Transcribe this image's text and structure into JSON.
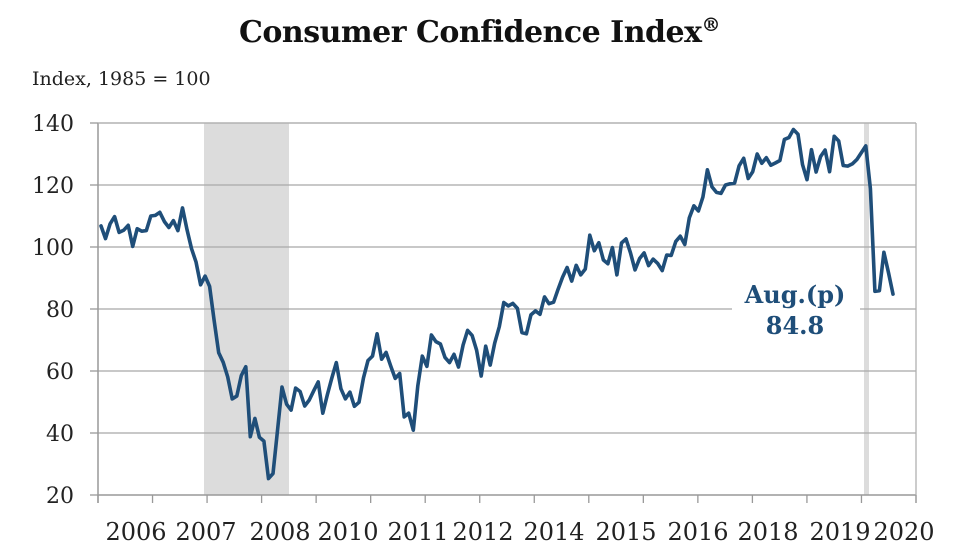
{
  "chart_data": {
    "type": "line",
    "title": "Consumer Confidence Index",
    "title_mark": "®",
    "ylabel": "Index, 1985 = 100",
    "xlabel": "",
    "ylim": [
      20,
      140
    ],
    "yticks": [
      20,
      40,
      60,
      80,
      100,
      120,
      140
    ],
    "xtick_labels": [
      "2006",
      "2007",
      "2008",
      "2010",
      "2011",
      "2012",
      "2014",
      "2015",
      "2016",
      "2018",
      "2019",
      "2020"
    ],
    "grid": true,
    "line_color": "#1f4e79",
    "recession_color": "#dcdcdc",
    "recession_periods": [
      {
        "start": "2007-12",
        "end": "2009-06"
      },
      {
        "start": "2020-02",
        "end": "2020-04"
      }
    ],
    "annotation": {
      "line1": "Aug.(p)",
      "line2": "84.8"
    },
    "series": [
      {
        "name": "Consumer Confidence Index",
        "start": "2006-01",
        "frequency": "monthly",
        "values": [
          106.8,
          102.7,
          107.5,
          109.8,
          104.7,
          105.4,
          107.0,
          100.2,
          105.9,
          105.1,
          105.3,
          110.0,
          110.2,
          111.2,
          108.2,
          106.3,
          108.5,
          105.3,
          112.6,
          105.6,
          99.5,
          95.2,
          87.8,
          90.6,
          87.3,
          76.4,
          65.9,
          62.8,
          58.1,
          51.0,
          51.9,
          58.5,
          61.4,
          38.8,
          44.7,
          38.6,
          37.4,
          25.3,
          26.9,
          40.8,
          54.8,
          49.3,
          47.4,
          54.5,
          53.4,
          48.7,
          50.6,
          53.6,
          56.5,
          46.4,
          52.3,
          57.7,
          62.7,
          54.3,
          51.0,
          53.2,
          48.6,
          49.9,
          57.8,
          63.4,
          64.8,
          72.0,
          63.8,
          66.0,
          61.7,
          57.6,
          59.2,
          45.2,
          46.4,
          40.9,
          55.2,
          64.8,
          61.5,
          71.6,
          69.5,
          68.7,
          64.4,
          62.7,
          65.4,
          61.3,
          68.4,
          73.1,
          71.5,
          66.7,
          58.4,
          68.0,
          61.9,
          69.0,
          74.3,
          82.1,
          81.0,
          81.8,
          80.2,
          72.4,
          72.0,
          78.1,
          79.4,
          78.3,
          83.9,
          81.7,
          82.2,
          86.4,
          90.3,
          93.4,
          89.0,
          94.1,
          91.0,
          92.9,
          103.8,
          98.8,
          101.4,
          95.8,
          94.6,
          99.8,
          91.0,
          101.3,
          102.6,
          98.1,
          92.6,
          96.3,
          98.1,
          94.0,
          96.1,
          94.7,
          92.4,
          97.4,
          97.3,
          101.8,
          103.5,
          100.8,
          109.4,
          113.3,
          111.6,
          116.1,
          124.9,
          119.4,
          117.6,
          117.3,
          120.0,
          120.4,
          120.6,
          126.2,
          128.6,
          122.1,
          124.3,
          130.0,
          127.0,
          128.8,
          126.4,
          127.1,
          127.9,
          134.7,
          135.3,
          137.9,
          136.4,
          126.6,
          121.7,
          131.4,
          124.2,
          129.2,
          131.3,
          124.3,
          135.7,
          134.2,
          126.3,
          126.1,
          126.8,
          128.2,
          130.4,
          132.6,
          118.8,
          85.7,
          85.9,
          98.3,
          91.7,
          84.8
        ]
      }
    ]
  }
}
